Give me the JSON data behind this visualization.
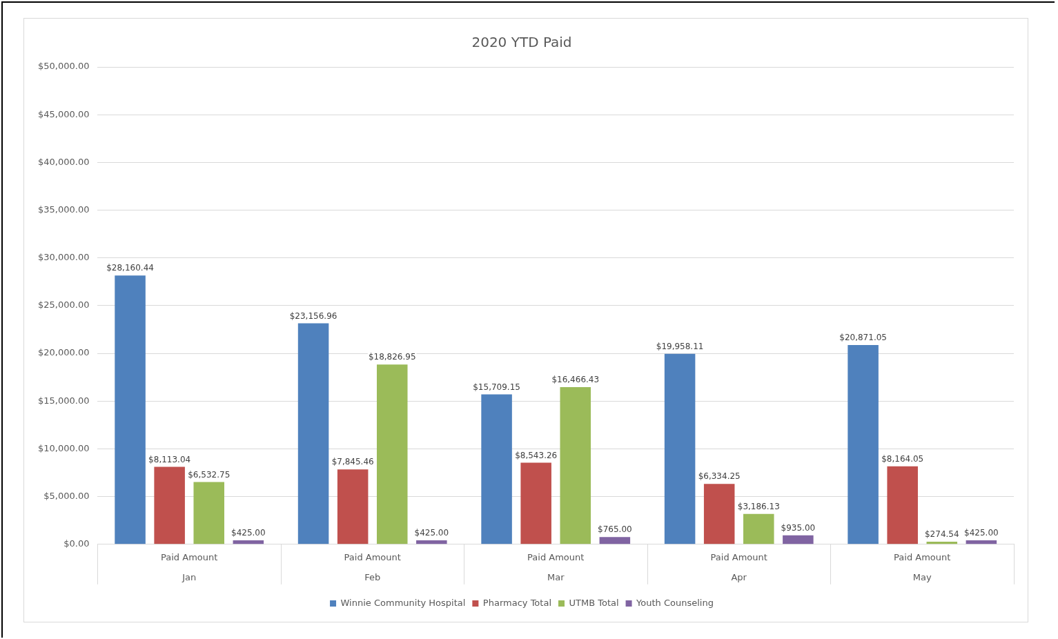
{
  "chart_data": {
    "type": "bar",
    "title": "2020 YTD Paid",
    "categories": [
      "Paid Amount\nJan",
      "Paid Amount\nFeb",
      "Paid Amount\nMar",
      "Paid Amount\nApr",
      "Paid Amount\nMay"
    ],
    "series": [
      {
        "name": "Winnie Community Hospital",
        "color": "#4f81bd",
        "values": [
          28160.44,
          23156.96,
          15709.15,
          19958.11,
          20871.05
        ],
        "value_labels": [
          "$28,160.44",
          "$23,156.96",
          "$15,709.15",
          "$19,958.11",
          "$20,871.05"
        ]
      },
      {
        "name": "Pharmacy Total",
        "color": "#c0504d",
        "values": [
          8113.04,
          7845.46,
          8543.26,
          6334.25,
          8164.05
        ],
        "value_labels": [
          "$8,113.04",
          "$7,845.46",
          "$8,543.26",
          "$6,334.25",
          "$8,164.05"
        ]
      },
      {
        "name": "UTMB Total",
        "color": "#9bbb59",
        "values": [
          6532.75,
          18826.95,
          16466.43,
          3186.13,
          274.54
        ],
        "value_labels": [
          "$6,532.75",
          "$18,826.95",
          "$16,466.43",
          "$3,186.13",
          "$274.54"
        ]
      },
      {
        "name": "Youth Counseling",
        "color": "#8064a2",
        "values": [
          425,
          425,
          765,
          935,
          425
        ],
        "value_labels": [
          "$425.00",
          "$425.00",
          "$765.00",
          "$935.00",
          "$425.00"
        ]
      }
    ],
    "ylim": [
      0,
      50000
    ],
    "yticks": [
      {
        "value": 0,
        "label": "$0.00"
      },
      {
        "value": 5000,
        "label": "$5,000.00"
      },
      {
        "value": 10000,
        "label": "$10,000.00"
      },
      {
        "value": 15000,
        "label": "$15,000.00"
      },
      {
        "value": 20000,
        "label": "$20,000.00"
      },
      {
        "value": 25000,
        "label": "$25,000.00"
      },
      {
        "value": 30000,
        "label": "$30,000.00"
      },
      {
        "value": 35000,
        "label": "$35,000.00"
      },
      {
        "value": 40000,
        "label": "$40,000.00"
      },
      {
        "value": 45000,
        "label": "$45,000.00"
      },
      {
        "value": 50000,
        "label": "$50,000.00"
      }
    ],
    "grid": "y",
    "legend": "bottom"
  }
}
